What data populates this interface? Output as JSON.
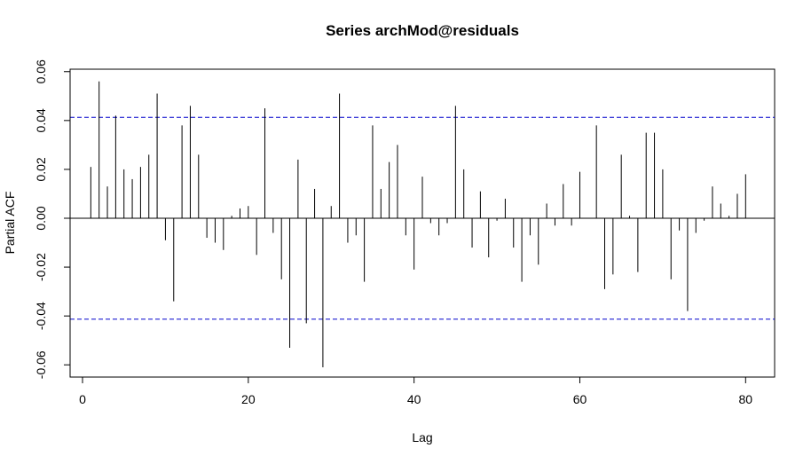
{
  "chart_data": {
    "type": "bar",
    "title": "Series  archMod@residuals",
    "xlabel": "Lag",
    "ylabel": "Partial ACF",
    "xlim": [
      -1.5,
      83.5
    ],
    "ylim": [
      -0.065,
      0.061
    ],
    "x_ticks": [
      0,
      20,
      40,
      60,
      80
    ],
    "x_tick_labels": [
      "0",
      "20",
      "40",
      "60",
      "80"
    ],
    "y_ticks": [
      -0.06,
      -0.04,
      -0.02,
      0.0,
      0.02,
      0.04,
      0.06
    ],
    "y_tick_labels": [
      "-0.06",
      "-0.04",
      "-0.02",
      "0.00",
      "0.02",
      "0.04",
      "0.06"
    ],
    "confidence_bound": 0.0413,
    "colors": {
      "spike": "#000000",
      "bound": "#0000cc",
      "zero_line": "#000000"
    },
    "grid": false,
    "series": [
      {
        "x": [
          1,
          2,
          3,
          4,
          5,
          6,
          7,
          8,
          9,
          10,
          11,
          12,
          13,
          14,
          15,
          16,
          17,
          18,
          19,
          20,
          21,
          22,
          23,
          24,
          25,
          26,
          27,
          28,
          29,
          30,
          31,
          32,
          33,
          34,
          35,
          36,
          37,
          38,
          39,
          40,
          41,
          42,
          43,
          44,
          45,
          46,
          47,
          48,
          49,
          50,
          51,
          52,
          53,
          54,
          55,
          56,
          57,
          58,
          59,
          60,
          61,
          62,
          63,
          64,
          65,
          66,
          67,
          68,
          69,
          70,
          71,
          72,
          73,
          74,
          75,
          76,
          77,
          78,
          79,
          80
        ],
        "values": [
          0.021,
          0.056,
          0.013,
          0.042,
          0.02,
          0.016,
          0.021,
          0.026,
          0.051,
          -0.009,
          -0.034,
          0.038,
          0.046,
          0.026,
          -0.008,
          -0.01,
          -0.013,
          0.001,
          0.004,
          0.005,
          -0.015,
          0.045,
          -0.006,
          -0.025,
          -0.053,
          0.024,
          -0.043,
          0.012,
          -0.061,
          0.005,
          0.051,
          -0.01,
          -0.007,
          -0.026,
          0.038,
          0.012,
          0.023,
          0.03,
          -0.007,
          -0.021,
          0.017,
          -0.002,
          -0.007,
          -0.002,
          0.046,
          0.02,
          -0.012,
          0.011,
          -0.016,
          -0.001,
          0.008,
          -0.012,
          -0.026,
          -0.007,
          -0.019,
          0.006,
          -0.003,
          0.014,
          -0.003,
          0.019,
          0.0,
          0.038,
          -0.029,
          -0.023,
          0.026,
          0.001,
          -0.022,
          0.035,
          0.035,
          0.02,
          -0.025,
          -0.005,
          -0.038,
          -0.006,
          -0.001,
          0.013,
          0.006,
          0.001,
          0.01,
          0.018
        ]
      }
    ]
  }
}
